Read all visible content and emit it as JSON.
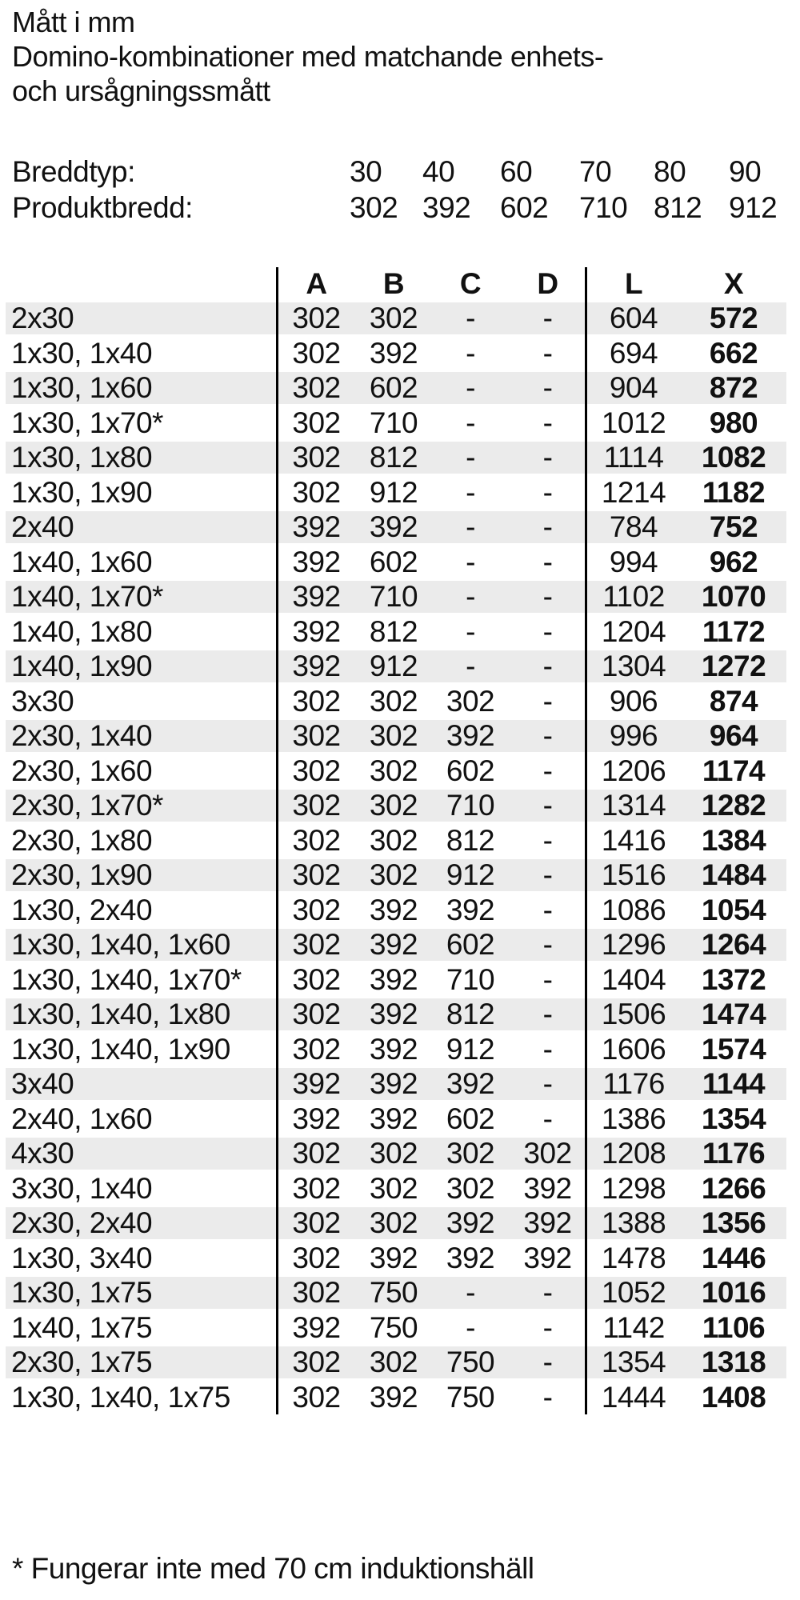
{
  "header": {
    "units_note": "Mått i mm",
    "title_line1": "Domino-kombinationer med matchande enhets-",
    "title_line2": "och ursågningssmått"
  },
  "width_info": {
    "rows": [
      {
        "label": "Breddtyp:",
        "values": [
          "30",
          "40",
          "60",
          "70",
          "80",
          "90"
        ]
      },
      {
        "label": "Produktbredd:",
        "values": [
          "302",
          "392",
          "602",
          "710",
          "812",
          "912"
        ]
      }
    ]
  },
  "table": {
    "columns": [
      "A",
      "B",
      "C",
      "D",
      "L",
      "X"
    ],
    "rows": [
      {
        "label": "2x30",
        "a": "302",
        "b": "302",
        "c": "-",
        "d": "-",
        "l": "604",
        "x": "572"
      },
      {
        "label": "1x30, 1x40",
        "a": "302",
        "b": "392",
        "c": "-",
        "d": "-",
        "l": "694",
        "x": "662"
      },
      {
        "label": "1x30, 1x60",
        "a": "302",
        "b": "602",
        "c": "-",
        "d": "-",
        "l": "904",
        "x": "872"
      },
      {
        "label": "1x30, 1x70*",
        "a": "302",
        "b": "710",
        "c": "-",
        "d": "-",
        "l": "1012",
        "x": "980"
      },
      {
        "label": "1x30, 1x80",
        "a": "302",
        "b": "812",
        "c": "-",
        "d": "-",
        "l": "1114",
        "x": "1082"
      },
      {
        "label": "1x30, 1x90",
        "a": "302",
        "b": "912",
        "c": "-",
        "d": "-",
        "l": "1214",
        "x": "1182"
      },
      {
        "label": "2x40",
        "a": "392",
        "b": "392",
        "c": "-",
        "d": "-",
        "l": "784",
        "x": "752"
      },
      {
        "label": "1x40, 1x60",
        "a": "392",
        "b": "602",
        "c": "-",
        "d": "-",
        "l": "994",
        "x": "962"
      },
      {
        "label": "1x40, 1x70*",
        "a": "392",
        "b": "710",
        "c": "-",
        "d": "-",
        "l": "1102",
        "x": "1070"
      },
      {
        "label": "1x40, 1x80",
        "a": "392",
        "b": "812",
        "c": "-",
        "d": "-",
        "l": "1204",
        "x": "1172"
      },
      {
        "label": "1x40, 1x90",
        "a": "392",
        "b": "912",
        "c": "-",
        "d": "-",
        "l": "1304",
        "x": "1272"
      },
      {
        "label": "3x30",
        "a": "302",
        "b": "302",
        "c": "302",
        "d": "-",
        "l": "906",
        "x": "874"
      },
      {
        "label": "2x30, 1x40",
        "a": "302",
        "b": "302",
        "c": "392",
        "d": "-",
        "l": "996",
        "x": "964"
      },
      {
        "label": "2x30, 1x60",
        "a": "302",
        "b": "302",
        "c": "602",
        "d": "-",
        "l": "1206",
        "x": "1174"
      },
      {
        "label": "2x30, 1x70*",
        "a": "302",
        "b": "302",
        "c": "710",
        "d": "-",
        "l": "1314",
        "x": "1282"
      },
      {
        "label": "2x30, 1x80",
        "a": "302",
        "b": "302",
        "c": "812",
        "d": "-",
        "l": "1416",
        "x": "1384"
      },
      {
        "label": "2x30, 1x90",
        "a": "302",
        "b": "302",
        "c": "912",
        "d": "-",
        "l": "1516",
        "x": "1484"
      },
      {
        "label": "1x30, 2x40",
        "a": "302",
        "b": "392",
        "c": "392",
        "d": "-",
        "l": "1086",
        "x": "1054"
      },
      {
        "label": "1x30, 1x40, 1x60",
        "a": "302",
        "b": "392",
        "c": "602",
        "d": "-",
        "l": "1296",
        "x": "1264"
      },
      {
        "label": "1x30, 1x40, 1x70*",
        "a": "302",
        "b": "392",
        "c": "710",
        "d": "-",
        "l": "1404",
        "x": "1372"
      },
      {
        "label": "1x30, 1x40, 1x80",
        "a": "302",
        "b": "392",
        "c": "812",
        "d": "-",
        "l": "1506",
        "x": "1474"
      },
      {
        "label": "1x30, 1x40, 1x90",
        "a": "302",
        "b": "392",
        "c": "912",
        "d": "-",
        "l": "1606",
        "x": "1574"
      },
      {
        "label": "3x40",
        "a": "392",
        "b": "392",
        "c": "392",
        "d": "-",
        "l": "1176",
        "x": "1144"
      },
      {
        "label": "2x40, 1x60",
        "a": "392",
        "b": "392",
        "c": "602",
        "d": "-",
        "l": "1386",
        "x": "1354"
      },
      {
        "label": "4x30",
        "a": "302",
        "b": "302",
        "c": "302",
        "d": "302",
        "l": "1208",
        "x": "1176"
      },
      {
        "label": "3x30, 1x40",
        "a": "302",
        "b": "302",
        "c": "302",
        "d": "392",
        "l": "1298",
        "x": "1266"
      },
      {
        "label": "2x30, 2x40",
        "a": "302",
        "b": "302",
        "c": "392",
        "d": "392",
        "l": "1388",
        "x": "1356"
      },
      {
        "label": "1x30, 3x40",
        "a": "302",
        "b": "392",
        "c": "392",
        "d": "392",
        "l": "1478",
        "x": "1446"
      },
      {
        "label": "1x30, 1x75",
        "a": "302",
        "b": "750",
        "c": "-",
        "d": "-",
        "l": "1052",
        "x": "1016"
      },
      {
        "label": "1x40, 1x75",
        "a": "392",
        "b": "750",
        "c": "-",
        "d": "-",
        "l": "1142",
        "x": "1106"
      },
      {
        "label": "2x30, 1x75",
        "a": "302",
        "b": "302",
        "c": "750",
        "d": "-",
        "l": "1354",
        "x": "1318"
      },
      {
        "label": "1x30, 1x40, 1x75",
        "a": "302",
        "b": "392",
        "c": "750",
        "d": "-",
        "l": "1444",
        "x": "1408"
      }
    ]
  },
  "footnote": {
    "text": "* Fungerar inte med 70 cm induktionshäll"
  },
  "colors": {
    "background": "#ffffff",
    "text": "#111111",
    "row_shade": "#ebebeb",
    "rule": "#000000"
  }
}
